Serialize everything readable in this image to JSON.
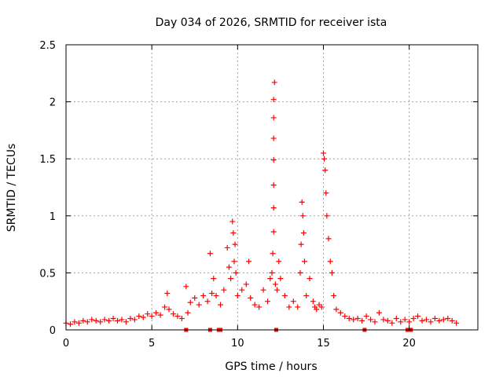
{
  "colors": {
    "series": "#ff0000",
    "axis": "#000000",
    "grid": "#a0a0a0",
    "background": "#ffffff"
  },
  "chart_data": {
    "type": "scatter",
    "title": "Day 034 of 2026, SRMTID for receiver ista",
    "xlabel": "GPS time / hours",
    "ylabel": "SRMTID / TECUs",
    "xlim": [
      0,
      24
    ],
    "ylim": [
      0,
      2.5
    ],
    "grid": true,
    "marker": "+",
    "x_ticks": [
      0,
      5,
      10,
      15,
      20
    ],
    "x_tick_labels": [
      "0",
      "5",
      "10",
      "15",
      "20"
    ],
    "y_ticks": [
      0,
      0.5,
      1,
      1.5,
      2,
      2.5
    ],
    "y_tick_labels": [
      "0",
      "0.5",
      "1",
      "1.5",
      "2",
      "2.5"
    ],
    "series": [
      {
        "name": "SRMTID",
        "x": [
          0.0,
          0.25,
          0.5,
          0.75,
          1.0,
          1.25,
          1.5,
          1.75,
          2.0,
          2.25,
          2.5,
          2.75,
          3.0,
          3.25,
          3.5,
          3.75,
          4.0,
          4.25,
          4.5,
          4.75,
          5.0,
          5.25,
          5.5,
          5.75,
          5.9,
          6.0,
          6.25,
          6.5,
          6.75,
          7.0,
          7.1,
          7.25,
          7.5,
          7.75,
          8.0,
          8.25,
          8.4,
          8.5,
          8.6,
          8.75,
          9.0,
          9.2,
          9.4,
          9.5,
          9.6,
          9.7,
          9.75,
          9.8,
          9.85,
          9.9,
          10.0,
          10.25,
          10.5,
          10.65,
          10.75,
          11.0,
          11.25,
          11.5,
          11.75,
          11.9,
          12.0,
          12.05,
          12.1,
          12.1,
          12.1,
          12.1,
          12.1,
          12.1,
          12.1,
          12.15,
          12.2,
          12.3,
          12.4,
          12.5,
          12.75,
          13.0,
          13.25,
          13.5,
          13.65,
          13.7,
          13.75,
          13.8,
          13.85,
          13.9,
          14.0,
          14.2,
          14.4,
          14.5,
          14.6,
          14.75,
          14.9,
          15.0,
          15.05,
          15.1,
          15.15,
          15.2,
          15.3,
          15.4,
          15.5,
          15.6,
          15.75,
          16.0,
          16.25,
          16.5,
          16.75,
          17.0,
          17.25,
          17.5,
          17.75,
          18.0,
          18.25,
          18.5,
          18.75,
          19.0,
          19.25,
          19.5,
          19.75,
          20.0,
          20.25,
          20.5,
          20.75,
          21.0,
          21.25,
          21.5,
          21.75,
          22.0,
          22.25,
          22.5,
          22.75,
          7.0,
          8.4,
          8.9,
          9.0,
          12.25,
          17.4,
          19.9,
          20.1
        ],
        "y": [
          0.06,
          0.05,
          0.07,
          0.06,
          0.08,
          0.07,
          0.09,
          0.08,
          0.07,
          0.09,
          0.08,
          0.1,
          0.08,
          0.09,
          0.07,
          0.1,
          0.09,
          0.12,
          0.11,
          0.14,
          0.12,
          0.15,
          0.13,
          0.2,
          0.32,
          0.18,
          0.14,
          0.12,
          0.1,
          0.38,
          0.15,
          0.24,
          0.28,
          0.22,
          0.3,
          0.25,
          0.67,
          0.32,
          0.45,
          0.3,
          0.22,
          0.35,
          0.72,
          0.55,
          0.45,
          0.95,
          0.85,
          0.6,
          0.75,
          0.5,
          0.3,
          0.35,
          0.4,
          0.6,
          0.28,
          0.22,
          0.2,
          0.35,
          0.25,
          0.45,
          0.5,
          0.67,
          0.86,
          1.07,
          1.27,
          1.49,
          1.68,
          1.86,
          2.02,
          2.17,
          0.4,
          0.35,
          0.6,
          0.45,
          0.3,
          0.2,
          0.25,
          0.2,
          0.5,
          0.75,
          1.12,
          1.0,
          0.85,
          0.6,
          0.3,
          0.45,
          0.25,
          0.2,
          0.18,
          0.22,
          0.2,
          1.55,
          1.5,
          1.4,
          1.2,
          1.0,
          0.8,
          0.6,
          0.5,
          0.3,
          0.18,
          0.15,
          0.12,
          0.1,
          0.09,
          0.1,
          0.08,
          0.12,
          0.09,
          0.07,
          0.15,
          0.09,
          0.08,
          0.06,
          0.1,
          0.07,
          0.09,
          0.07,
          0.1,
          0.12,
          0.08,
          0.09,
          0.07,
          0.1,
          0.08,
          0.09,
          0.1,
          0.08,
          0.06,
          0.0,
          0.0,
          0.0,
          0.0,
          0.0,
          0.0,
          0.0,
          0.0
        ]
      }
    ]
  }
}
